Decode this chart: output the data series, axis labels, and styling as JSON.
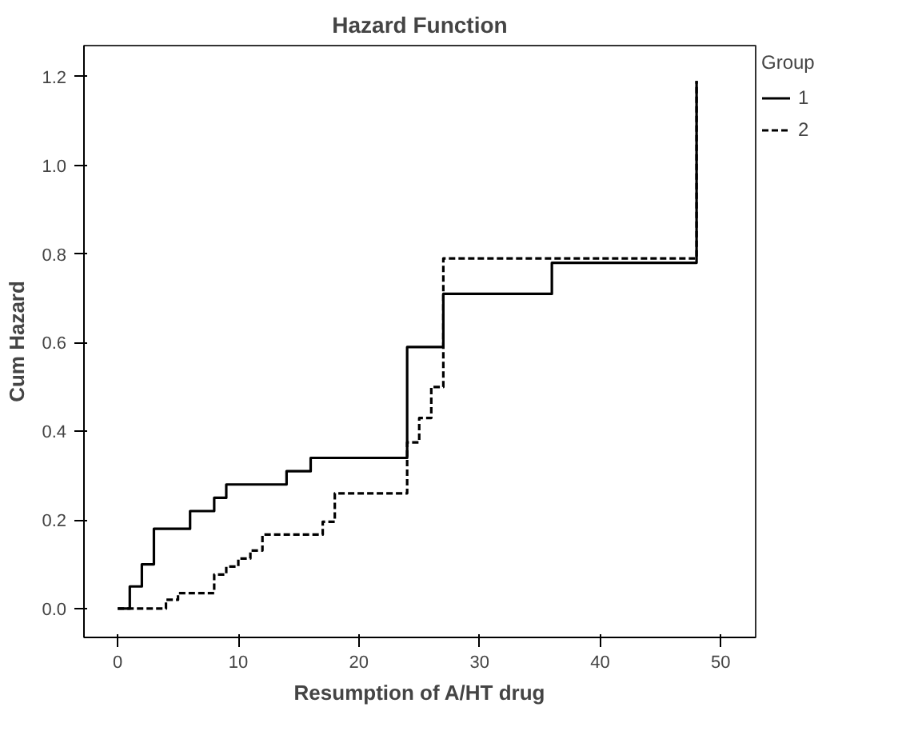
{
  "chart_data": {
    "type": "step",
    "title": "Hazard Function",
    "xlabel": "Resumption of A/HT drug",
    "ylabel": "Cum Hazard",
    "legend_title": "Group",
    "legend": "top right",
    "grid": false,
    "xlim": [
      -2.8,
      52.9
    ],
    "xticks": [
      0,
      10,
      20,
      30,
      40,
      50
    ],
    "ylim": [
      -0.065,
      1.27
    ],
    "yticks": [
      {
        "value": 0,
        "label": "0.0"
      },
      {
        "value": 0.2,
        "label": "0.2"
      },
      {
        "value": 0.4,
        "label": "0.4"
      },
      {
        "value": 0.6,
        "label": "0.6"
      },
      {
        "value": 0.8,
        "label": "0.8"
      },
      {
        "value": 1.0,
        "label": "1.0"
      },
      {
        "value": 1.2,
        "label": "1.2"
      }
    ],
    "series": [
      {
        "name": "1",
        "color": "#000000",
        "line_style": "solid",
        "x": [
          0,
          1,
          2,
          3,
          6,
          8,
          9,
          14,
          16,
          24,
          27,
          36,
          48,
          48
        ],
        "values": [
          0,
          0.05,
          0.1,
          0.18,
          0.22,
          0.25,
          0.28,
          0.31,
          0.34,
          0.59,
          0.71,
          0.78,
          0.78,
          1.19
        ]
      },
      {
        "name": "2",
        "color": "#000000",
        "line_style": "dashed",
        "x": [
          0,
          4,
          5,
          8,
          9,
          10,
          11,
          12,
          17,
          18,
          24,
          25,
          26,
          27,
          48,
          48
        ],
        "values": [
          0,
          0.02,
          0.035,
          0.077,
          0.095,
          0.113,
          0.131,
          0.167,
          0.196,
          0.26,
          0.375,
          0.43,
          0.5,
          0.79,
          0.79,
          1.19
        ]
      }
    ]
  }
}
